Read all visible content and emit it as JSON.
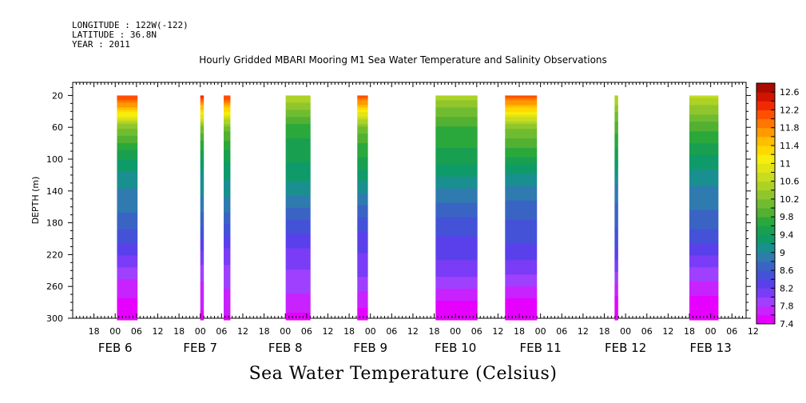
{
  "header": {
    "longitude": "LONGITUDE : 122W(-122)",
    "latitude": "LATITUDE : 36.8N",
    "year": "YEAR : 2011"
  },
  "chart_data": {
    "type": "heatmap",
    "title": "Hourly Gridded MBARI Mooring M1 Sea Water Temperature and Salinity Observations",
    "subtitle": "Sea Water Temperature (Celsius)",
    "ylabel": "DEPTH (m)",
    "xlabel": "",
    "y_ticks": [
      20,
      60,
      100,
      140,
      180,
      220,
      260,
      300
    ],
    "ylim": [
      300,
      20
    ],
    "x_range_hours": [
      "FEB 5 12:00",
      "FEB 13 22:00"
    ],
    "x_hour_ticks": [
      "18",
      "00",
      "06",
      "12",
      "18",
      "00",
      "06",
      "12",
      "18",
      "00",
      "06",
      "12",
      "18",
      "00",
      "06",
      "12",
      "18",
      "00",
      "06",
      "12",
      "18",
      "00",
      "06",
      "12",
      "18",
      "00",
      "06",
      "12",
      "18",
      "00",
      "06",
      "12"
    ],
    "x_hour_tick_positions_h": [
      -6,
      0,
      6,
      12,
      18,
      24,
      30,
      36,
      42,
      48,
      54,
      60,
      66,
      72,
      78,
      84,
      90,
      96,
      102,
      108,
      114,
      120,
      126,
      132,
      138,
      144,
      150,
      156,
      162,
      168,
      174,
      180
    ],
    "x_date_labels": [
      {
        "label": "FEB  6",
        "hour": 0
      },
      {
        "label": "FEB  7",
        "hour": 24
      },
      {
        "label": "FEB  8",
        "hour": 48
      },
      {
        "label": "FEB  9",
        "hour": 72
      },
      {
        "label": "FEB 10",
        "hour": 96
      },
      {
        "label": "FEB 11",
        "hour": 120
      },
      {
        "label": "FEB 12",
        "hour": 144
      },
      {
        "label": "FEB 13",
        "hour": 168
      }
    ],
    "colorbar": {
      "levels": [
        7.4,
        7.6,
        7.8,
        8.0,
        8.2,
        8.4,
        8.6,
        8.8,
        9.0,
        9.2,
        9.4,
        9.6,
        9.8,
        10.0,
        10.2,
        10.4,
        10.6,
        10.8,
        11.0,
        11.2,
        11.4,
        11.6,
        11.8,
        12.0,
        12.2,
        12.4,
        12.6,
        12.8
      ],
      "labels": [
        "7.4",
        "7.8",
        "8.2",
        "8.6",
        "9",
        "9.4",
        "9.8",
        "10.2",
        "10.6",
        "11",
        "11.4",
        "11.8",
        "12.2",
        "12.6"
      ],
      "colors": [
        "#e600ff",
        "#c822ff",
        "#a040ff",
        "#7a3cf6",
        "#5a40ea",
        "#4452d8",
        "#3a64c4",
        "#2f7bb0",
        "#1a8f90",
        "#0f9a6a",
        "#18a050",
        "#2aa83c",
        "#52b032",
        "#70bc30",
        "#90c62c",
        "#acd226",
        "#c8dc20",
        "#e2e416",
        "#f6ee0c",
        "#ffd800",
        "#ffbe00",
        "#ff9a00",
        "#ff7600",
        "#ff5000",
        "#f02a00",
        "#d01400",
        "#aa0a00"
      ]
    },
    "data_segments_hours": [
      {
        "start": 0.5,
        "end": 6.3
      },
      {
        "start": 24.0,
        "end": 25.0
      },
      {
        "start": 30.6,
        "end": 32.5
      },
      {
        "start": 48.1,
        "end": 55.1
      },
      {
        "start": 68.3,
        "end": 71.3
      },
      {
        "start": 90.4,
        "end": 102.2
      },
      {
        "start": 110.0,
        "end": 119.0
      },
      {
        "start": 140.9,
        "end": 141.9
      },
      {
        "start": 162.0,
        "end": 170.2
      }
    ],
    "temperature_profile_by_depth": {
      "depths": [
        20,
        40,
        60,
        80,
        100,
        120,
        140,
        160,
        180,
        200,
        220,
        240,
        260,
        280,
        300
      ],
      "warm_segments": [
        12.2,
        11.2,
        10.2,
        9.8,
        9.5,
        9.2,
        9.0,
        8.8,
        8.6,
        8.4,
        8.2,
        8.0,
        7.8,
        7.6,
        7.5
      ],
      "cool_segments": [
        10.6,
        10.2,
        9.8,
        9.6,
        9.4,
        9.2,
        9.0,
        8.8,
        8.6,
        8.4,
        8.2,
        8.0,
        7.8,
        7.6,
        7.5
      ]
    }
  }
}
